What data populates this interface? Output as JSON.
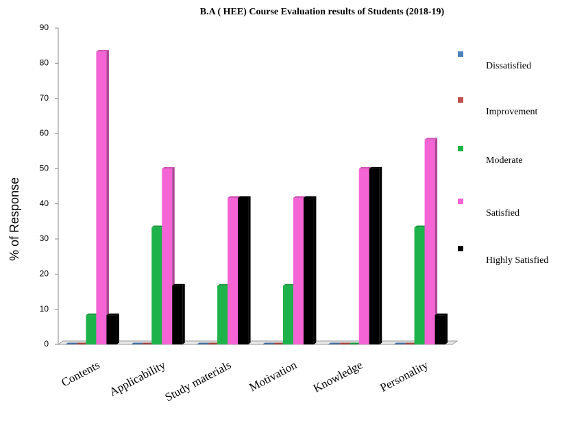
{
  "chart_data": {
    "type": "bar",
    "title": "B.A ( HEE) Course Evaluation  results of  Students (2018-19)",
    "y_axis_label": "% of Response",
    "categories": [
      "Contents",
      "Applicability",
      "Study materials",
      "Motivation",
      "Knowledge",
      "Personality"
    ],
    "series": [
      {
        "name": "Dissatisfied",
        "color": "#4f81bd",
        "values": [
          0,
          0,
          0,
          0,
          0,
          0
        ]
      },
      {
        "name": "Improvement",
        "color": "#c0504d",
        "values": [
          0,
          0,
          0,
          0,
          0,
          0
        ]
      },
      {
        "name": "Moderate",
        "color": "#1db34a",
        "values": [
          8.3,
          33.3,
          16.7,
          16.7,
          0,
          33.3
        ]
      },
      {
        "name": "Satisfied",
        "color": "#f464d4",
        "values": [
          83.3,
          50,
          41.7,
          41.7,
          50,
          58.3
        ]
      },
      {
        "name": "Highly Satisfied",
        "color": "#000000",
        "values": [
          8.3,
          16.7,
          41.7,
          41.7,
          50,
          8.3
        ]
      }
    ],
    "ylim": [
      0,
      90
    ],
    "yticks": [
      0,
      10,
      20,
      30,
      40,
      50,
      60,
      70,
      80,
      90
    ],
    "legend": "right"
  }
}
